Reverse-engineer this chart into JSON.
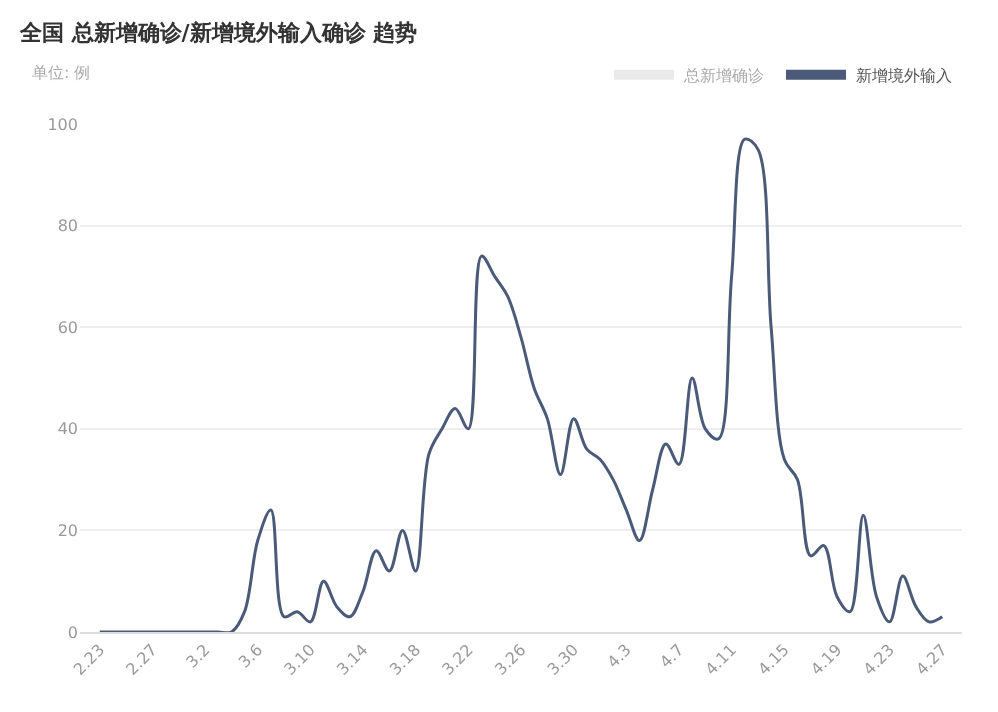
{
  "chart_data": {
    "type": "line",
    "title": "全国 总新增确诊/新增境外输入确诊 趋势",
    "subtitle": "单位: 例",
    "categories": [
      "2.23",
      null,
      null,
      null,
      "2.27",
      null,
      null,
      null,
      "3.2",
      null,
      null,
      null,
      "3.6",
      null,
      null,
      null,
      "3.10",
      null,
      null,
      null,
      "3.14",
      null,
      null,
      null,
      "3.18",
      null,
      null,
      null,
      "3.22",
      null,
      null,
      null,
      "3.26",
      null,
      null,
      null,
      "3.30",
      null,
      null,
      null,
      "4.3",
      null,
      null,
      null,
      "4.7",
      null,
      null,
      null,
      "4.11",
      null,
      null,
      null,
      "4.15",
      null,
      null,
      null,
      "4.19",
      null,
      null,
      null,
      "4.23",
      null,
      null,
      null,
      "4.27"
    ],
    "series": [
      {
        "name": "总新增确诊",
        "color": "#d6d6d6",
        "values": [
          null,
          null,
          null,
          null,
          null,
          null,
          null,
          null,
          null,
          null,
          null,
          null,
          null,
          null,
          null,
          null,
          null,
          null,
          null,
          null,
          null,
          null,
          null,
          null,
          null,
          null,
          null,
          null,
          null,
          null,
          null,
          null,
          null,
          null,
          null,
          null,
          null,
          null,
          null,
          null,
          null,
          null,
          null,
          null,
          null,
          null,
          null,
          null,
          null,
          null,
          null,
          null,
          null,
          null,
          null,
          null,
          null,
          null,
          null,
          null,
          null,
          null,
          null,
          null,
          null
        ]
      },
      {
        "name": "新增境外输入",
        "color": "#4a5a78",
        "values": [
          0,
          0,
          0,
          0,
          0,
          0,
          0,
          0,
          0,
          0,
          0,
          4,
          18,
          24,
          3,
          4,
          2,
          10,
          5,
          3,
          8,
          16,
          12,
          20,
          12,
          35,
          40,
          44,
          40,
          74,
          70,
          66,
          58,
          48,
          42,
          31,
          42,
          36,
          34,
          30,
          24,
          18,
          28,
          37,
          33,
          50,
          40,
          38,
          70,
          97,
          95,
          60,
          34,
          30,
          15,
          17,
          7,
          4,
          23,
          7,
          2,
          11,
          5,
          2,
          3
        ]
      }
    ],
    "ylim": [
      0,
      100
    ],
    "yticks": [
      0,
      20,
      40,
      60,
      80,
      100
    ],
    "grid": "y",
    "legend": "top right",
    "marker": "none",
    "line_style": "solid"
  }
}
